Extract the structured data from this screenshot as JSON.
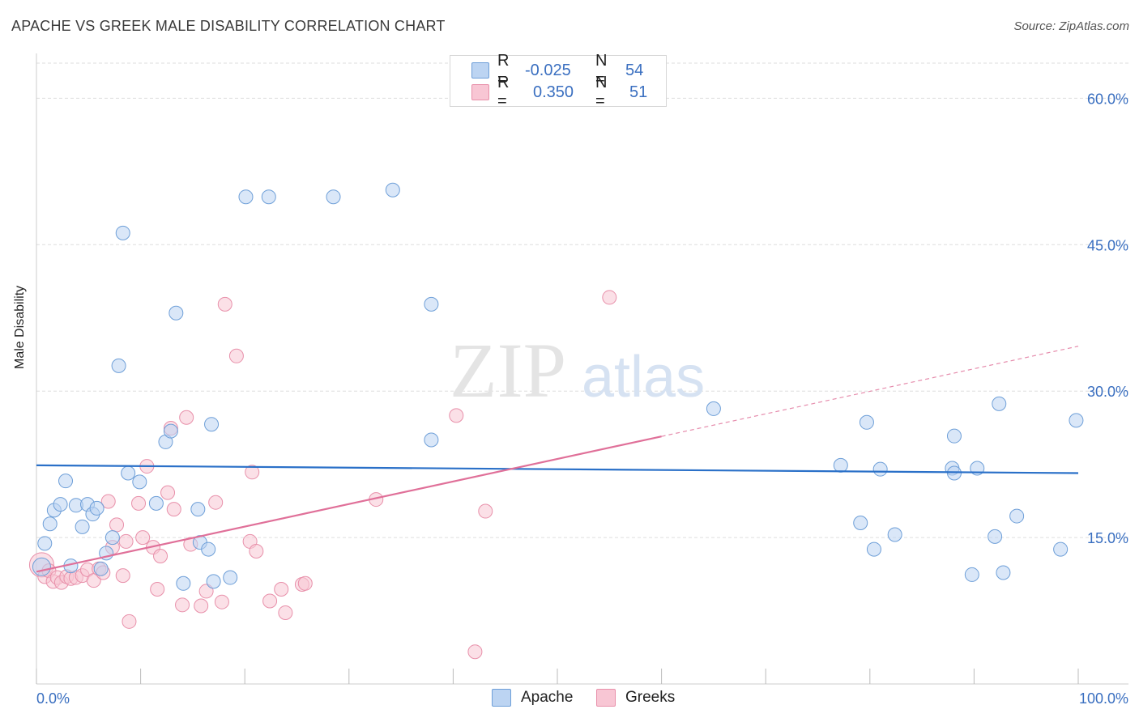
{
  "title": "APACHE VS GREEK MALE DISABILITY CORRELATION CHART",
  "source": "Source: ZipAtlas.com",
  "watermark": {
    "zip": "ZIP",
    "atlas": "atlas"
  },
  "legend_top": {
    "rows": [
      {
        "r_label": "R =",
        "r_value": "-0.025",
        "n_label": "N =",
        "n_value": "54"
      },
      {
        "r_label": "R =",
        "r_value": "0.350",
        "n_label": "N =",
        "n_value": "51"
      }
    ]
  },
  "colors": {
    "apache_fill": "#bcd4f2",
    "apache_stroke": "#6e9fd8",
    "apache_line": "#2a70c8",
    "greek_fill": "#f8c6d4",
    "greek_stroke": "#e890aa",
    "greek_line": "#e07099",
    "value_text": "#3a6fc0",
    "grid": "#dddddd"
  },
  "chart_data": {
    "type": "scatter",
    "title": "APACHE VS GREEK MALE DISABILITY CORRELATION CHART",
    "xlabel": "",
    "ylabel": "Male Disability",
    "xlim": [
      0,
      100
    ],
    "ylim": [
      0,
      63.6
    ],
    "x_tick_labels": [
      "0.0%",
      "100.0%"
    ],
    "y_ticks": [
      15,
      30,
      45,
      60
    ],
    "y_tick_labels": [
      "15.0%",
      "30.0%",
      "45.0%",
      "60.0%"
    ],
    "grid": true,
    "legend_position": "bottom",
    "series": [
      {
        "name": "Apache",
        "r": -0.025,
        "n": 54,
        "trend": {
          "x": [
            0,
            100
          ],
          "y": [
            22.4,
            21.6
          ]
        },
        "points": [
          [
            0.5,
            12.0
          ],
          [
            0.8,
            14.4
          ],
          [
            1.3,
            16.4
          ],
          [
            1.7,
            17.8
          ],
          [
            2.3,
            18.4
          ],
          [
            2.8,
            20.8
          ],
          [
            3.3,
            12.1
          ],
          [
            3.8,
            18.3
          ],
          [
            4.4,
            16.1
          ],
          [
            4.9,
            18.4
          ],
          [
            5.4,
            17.4
          ],
          [
            5.8,
            18.0
          ],
          [
            6.2,
            11.8
          ],
          [
            6.7,
            13.4
          ],
          [
            7.3,
            15.0
          ],
          [
            7.9,
            32.6
          ],
          [
            8.3,
            46.2
          ],
          [
            8.8,
            21.6
          ],
          [
            9.9,
            20.7
          ],
          [
            11.5,
            18.5
          ],
          [
            12.4,
            24.8
          ],
          [
            12.9,
            25.9
          ],
          [
            13.4,
            38.0
          ],
          [
            14.1,
            10.3
          ],
          [
            15.5,
            17.9
          ],
          [
            15.7,
            14.5
          ],
          [
            16.5,
            13.8
          ],
          [
            16.8,
            26.6
          ],
          [
            17.0,
            10.5
          ],
          [
            18.6,
            10.9
          ],
          [
            20.1,
            49.9
          ],
          [
            22.3,
            49.9
          ],
          [
            28.5,
            49.9
          ],
          [
            34.2,
            50.6
          ],
          [
            37.9,
            38.9
          ],
          [
            37.9,
            25.0
          ],
          [
            65.0,
            28.2
          ],
          [
            77.2,
            22.4
          ],
          [
            79.1,
            16.5
          ],
          [
            79.7,
            26.8
          ],
          [
            80.4,
            13.8
          ],
          [
            81.0,
            22.0
          ],
          [
            82.4,
            15.3
          ],
          [
            87.9,
            22.1
          ],
          [
            88.1,
            21.6
          ],
          [
            88.1,
            25.4
          ],
          [
            89.8,
            11.2
          ],
          [
            90.3,
            22.1
          ],
          [
            92.0,
            15.1
          ],
          [
            92.4,
            28.7
          ],
          [
            92.8,
            11.4
          ],
          [
            94.1,
            17.2
          ],
          [
            98.3,
            13.8
          ],
          [
            99.8,
            27.0
          ]
        ]
      },
      {
        "name": "Greeks",
        "r": 0.35,
        "n": 51,
        "trend": {
          "x": [
            0,
            100
          ],
          "y": [
            11.5,
            34.6
          ]
        },
        "points": [
          [
            0.5,
            12.2
          ],
          [
            0.8,
            11.0
          ],
          [
            1.2,
            11.6
          ],
          [
            1.6,
            10.5
          ],
          [
            2.0,
            10.9
          ],
          [
            2.4,
            10.4
          ],
          [
            2.9,
            11.0
          ],
          [
            3.3,
            10.8
          ],
          [
            3.8,
            10.9
          ],
          [
            4.4,
            11.1
          ],
          [
            4.9,
            11.7
          ],
          [
            5.5,
            10.6
          ],
          [
            6.0,
            11.8
          ],
          [
            6.4,
            11.4
          ],
          [
            6.9,
            18.7
          ],
          [
            7.3,
            14.0
          ],
          [
            7.7,
            16.3
          ],
          [
            8.3,
            11.1
          ],
          [
            8.6,
            14.6
          ],
          [
            8.9,
            6.4
          ],
          [
            9.8,
            18.5
          ],
          [
            10.2,
            15.0
          ],
          [
            10.6,
            22.3
          ],
          [
            11.2,
            14.0
          ],
          [
            11.6,
            9.7
          ],
          [
            11.9,
            13.1
          ],
          [
            12.6,
            19.6
          ],
          [
            12.9,
            26.2
          ],
          [
            13.2,
            17.9
          ],
          [
            14.0,
            8.1
          ],
          [
            14.4,
            27.3
          ],
          [
            14.8,
            14.3
          ],
          [
            15.8,
            8.0
          ],
          [
            16.3,
            9.5
          ],
          [
            17.2,
            18.6
          ],
          [
            17.8,
            8.4
          ],
          [
            18.1,
            38.9
          ],
          [
            19.2,
            33.6
          ],
          [
            20.5,
            14.6
          ],
          [
            20.7,
            21.7
          ],
          [
            21.1,
            13.6
          ],
          [
            22.4,
            8.5
          ],
          [
            23.5,
            9.7
          ],
          [
            23.9,
            7.3
          ],
          [
            25.5,
            10.2
          ],
          [
            25.8,
            10.3
          ],
          [
            32.6,
            18.9
          ],
          [
            40.3,
            27.5
          ],
          [
            42.1,
            3.3
          ],
          [
            43.1,
            17.7
          ],
          [
            55.0,
            39.6
          ]
        ]
      }
    ]
  },
  "legend_bottom": {
    "items": [
      "Apache",
      "Greeks"
    ]
  }
}
